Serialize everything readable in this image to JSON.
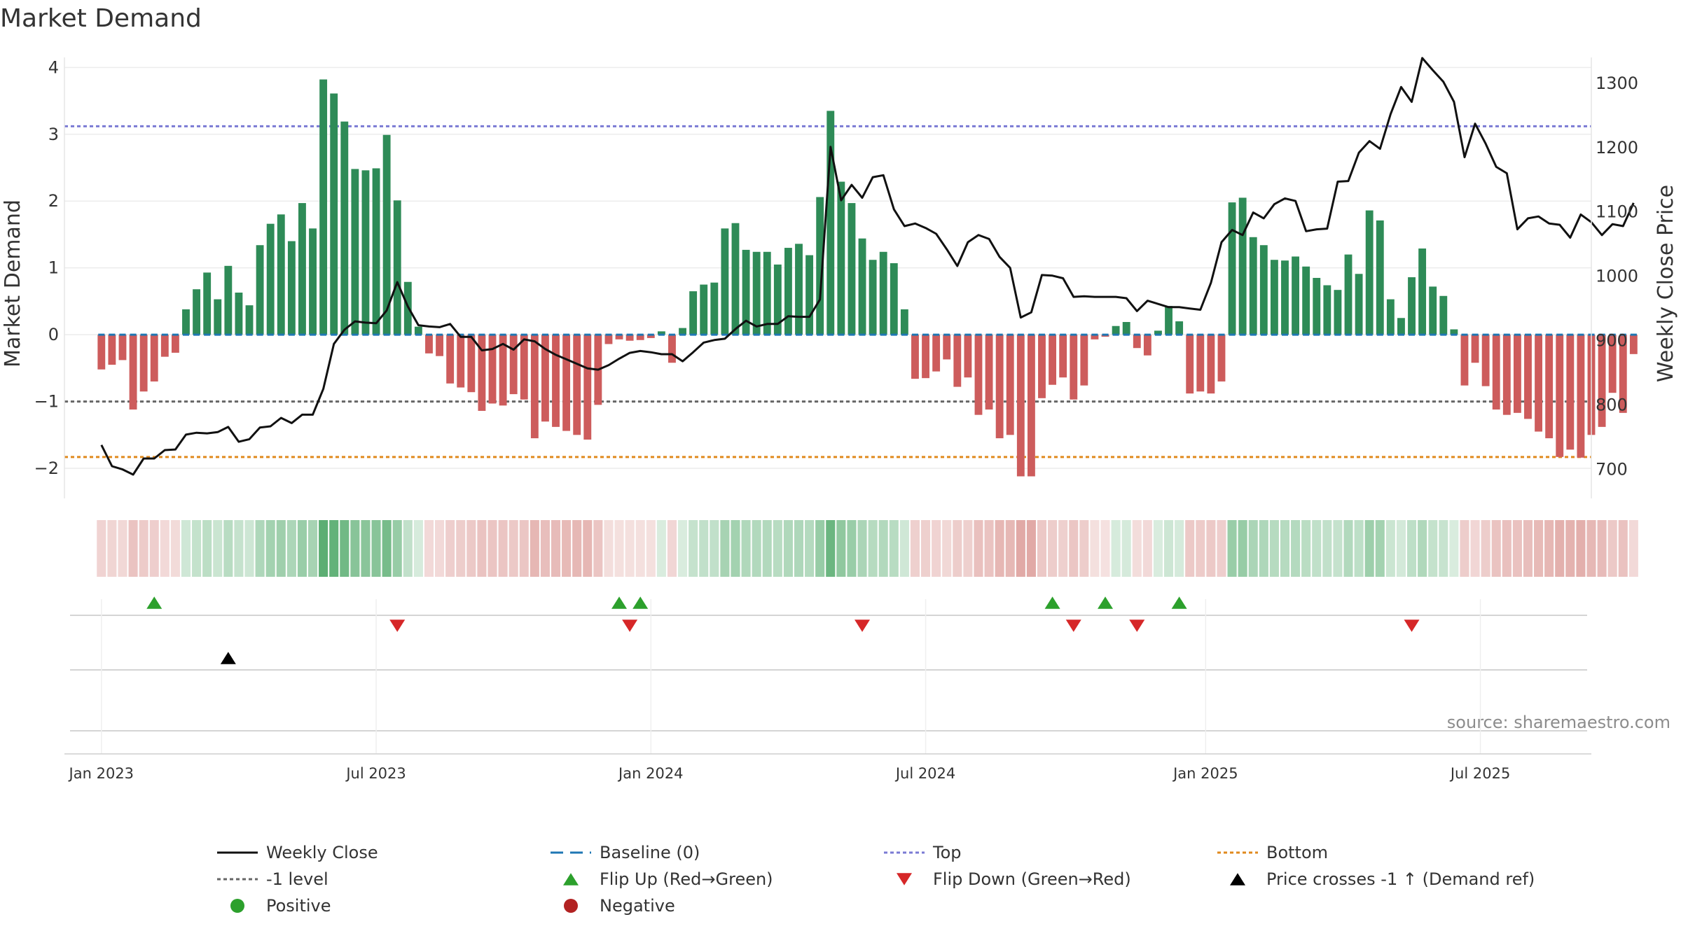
{
  "chart_data": {
    "type": "bar",
    "title": "Market Demand",
    "ylabel_left": "Market Demand",
    "ylabel_right": "Weekly Close Price",
    "source": "source: sharemaestro.com",
    "ylim_left": [
      -2.45,
      4.15
    ],
    "ylim_right": [
      655,
      1340
    ],
    "yticks_left": [
      4,
      3,
      2,
      1,
      0,
      -1,
      -2
    ],
    "yticks_left_labels": [
      "4",
      "3",
      "2",
      "1",
      "0",
      "−1",
      "−2"
    ],
    "yticks_right": [
      1300,
      1200,
      1100,
      1000,
      900,
      800,
      700
    ],
    "yticks_right_labels": [
      "1300",
      "1200",
      "1100",
      "1000",
      "900",
      "800",
      "700"
    ],
    "x_range_weeks": [
      -3.5,
      141
    ],
    "xticks": [
      {
        "week": 0,
        "label": "Jan 2023"
      },
      {
        "week": 26,
        "label": "Jul 2023"
      },
      {
        "week": 52,
        "label": "Jan 2024"
      },
      {
        "week": 78,
        "label": "Jul 2024"
      },
      {
        "week": 104.5,
        "label": "Jan 2025"
      },
      {
        "week": 130.5,
        "label": "Jul 2025"
      }
    ],
    "levels": {
      "top": 3.12,
      "bottom": -1.83,
      "minus_one": -1,
      "baseline": 0
    },
    "colors": {
      "positive": "#2e8b57",
      "negative": "#cd5c5c",
      "price": "#111111",
      "top": "#7b7bd4",
      "bottom": "#e08a1e",
      "minus_one": "#666666",
      "baseline": "#1f77b4",
      "flip_up": "#2ca02c",
      "flip_down": "#d62728",
      "cross": "#000000",
      "legend_positive": "#2ca02c",
      "legend_negative": "#b22222"
    },
    "demand": [
      -0.52,
      -0.45,
      -0.38,
      -1.12,
      -0.85,
      -0.7,
      -0.33,
      -0.27,
      0.38,
      0.68,
      0.93,
      0.53,
      1.03,
      0.63,
      0.44,
      1.34,
      1.66,
      1.8,
      1.4,
      1.97,
      1.59,
      3.82,
      3.61,
      3.19,
      2.48,
      2.46,
      2.49,
      2.99,
      2.01,
      0.79,
      0.12,
      -0.28,
      -0.32,
      -0.73,
      -0.79,
      -0.86,
      -1.14,
      -1.03,
      -1.06,
      -0.89,
      -0.97,
      -1.55,
      -1.3,
      -1.38,
      -1.44,
      -1.5,
      -1.57,
      -1.05,
      -0.14,
      -0.07,
      -0.09,
      -0.08,
      -0.05,
      0.05,
      -0.42,
      0.1,
      0.65,
      0.75,
      0.78,
      1.59,
      1.67,
      1.27,
      1.24,
      1.24,
      1.05,
      1.3,
      1.36,
      1.19,
      2.06,
      3.35,
      2.29,
      1.97,
      1.44,
      1.12,
      1.24,
      1.07,
      0.38,
      -0.66,
      -0.65,
      -0.55,
      -0.37,
      -0.78,
      -0.64,
      -1.2,
      -1.12,
      -1.55,
      -1.5,
      -2.12,
      -2.12,
      -0.95,
      -0.75,
      -0.64,
      -0.97,
      -0.76,
      -0.07,
      -0.03,
      0.13,
      0.19,
      -0.2,
      -0.31,
      0.06,
      0.43,
      0.2,
      -0.88,
      -0.85,
      -0.88,
      -0.7,
      1.98,
      2.05,
      1.46,
      1.34,
      1.12,
      1.11,
      1.17,
      1.02,
      0.85,
      0.74,
      0.67,
      1.2,
      0.91,
      1.86,
      1.71,
      0.53,
      0.25,
      0.86,
      1.29,
      0.72,
      0.58,
      0.08,
      -0.76,
      -0.42,
      -0.77,
      -1.12,
      -1.2,
      -1.17,
      -1.26,
      -1.45,
      -1.55,
      -1.83,
      -1.72,
      -1.84,
      -1.5,
      -1.38,
      -0.87,
      -1.17,
      -0.29
    ],
    "price": [
      738,
      705,
      700,
      692,
      717,
      717,
      730,
      731,
      754,
      757,
      756,
      758,
      766,
      743,
      747,
      765,
      767,
      780,
      772,
      785,
      785,
      825,
      895,
      917,
      930,
      928,
      927,
      947,
      991,
      953,
      924,
      922,
      921,
      926,
      906,
      906,
      885,
      887,
      895,
      886,
      902,
      899,
      887,
      878,
      871,
      864,
      857,
      855,
      862,
      872,
      881,
      884,
      882,
      879,
      879,
      868,
      882,
      897,
      901,
      903,
      918,
      931,
      922,
      926,
      926,
      938,
      937,
      937,
      964,
      1201,
      1118,
      1142,
      1122,
      1154,
      1157,
      1104,
      1078,
      1082,
      1075,
      1066,
      1042,
      1016,
      1053,
      1064,
      1058,
      1030,
      1013,
      936,
      944,
      1002,
      1001,
      997,
      968,
      969,
      968,
      968,
      968,
      966,
      946,
      962,
      957,
      952,
      952,
      950,
      948,
      990,
      1053,
      1072,
      1064,
      1099,
      1090,
      1112,
      1121,
      1117,
      1070,
      1073,
      1074,
      1147,
      1148,
      1192,
      1210,
      1198,
      1252,
      1294,
      1271,
      1339,
      1320,
      1302,
      1271,
      1185,
      1237,
      1206,
      1170,
      1160,
      1073,
      1090,
      1093,
      1082,
      1080,
      1060,
      1096,
      1084,
      1064,
      1081,
      1078,
      1114
    ],
    "flip_up_weeks": [
      5,
      49,
      51,
      90,
      95,
      102
    ],
    "flip_down_weeks": [
      28,
      50,
      72,
      92,
      98,
      124
    ],
    "cross_weeks": [
      12
    ],
    "legend": [
      {
        "key": "price",
        "label": "Weekly Close"
      },
      {
        "key": "baseline",
        "label": "Baseline (0)"
      },
      {
        "key": "top",
        "label": "Top"
      },
      {
        "key": "bottom",
        "label": "Bottom"
      },
      {
        "key": "minus_one",
        "label": "-1 level"
      },
      {
        "key": "flip_up",
        "label": "Flip Up (Red→Green)"
      },
      {
        "key": "flip_down",
        "label": "Flip Down (Green→Red)"
      },
      {
        "key": "cross",
        "label": "Price crosses -1 ↑ (Demand ref)"
      },
      {
        "key": "positive",
        "label": "Positive"
      },
      {
        "key": "negative",
        "label": "Negative"
      }
    ]
  }
}
